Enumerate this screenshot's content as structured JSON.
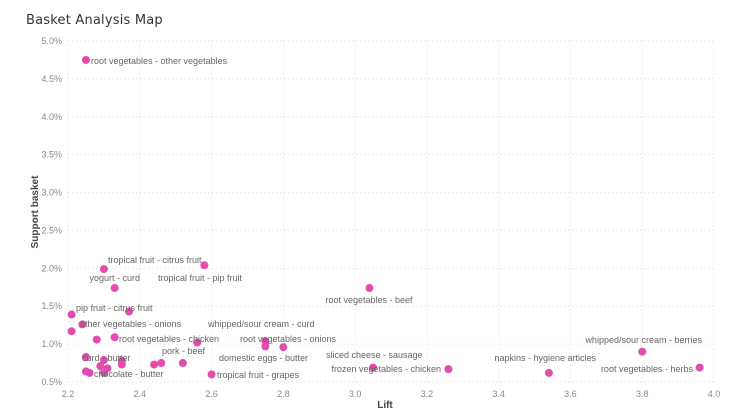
{
  "chart_data": {
    "type": "scatter",
    "title": "Basket Analysis Map",
    "xlabel": "Lift",
    "ylabel": "Support basket",
    "xlim": [
      2.2,
      4.0
    ],
    "ylim": [
      0.5,
      5.0
    ],
    "xticks": [
      "2.2",
      "2.4",
      "2.6",
      "2.8",
      "3.0",
      "3.2",
      "3.4",
      "3.6",
      "3.8",
      "4.0"
    ],
    "yticks": [
      "0.5%",
      "1.0%",
      "1.5%",
      "2.0%",
      "2.5%",
      "3.0%",
      "3.5%",
      "4.0%",
      "4.5%",
      "5.0%"
    ],
    "grid": true,
    "color": "#E44BAE",
    "points": [
      {
        "x": 2.25,
        "y": 4.75,
        "label": "root vegetables - other vegetables"
      },
      {
        "x": 2.3,
        "y": 1.99,
        "label": "tropical fruit - citrus fruit"
      },
      {
        "x": 2.58,
        "y": 2.04,
        "label": "tropical fruit - pip fruit"
      },
      {
        "x": 2.33,
        "y": 1.74,
        "label": "yogurt - curd"
      },
      {
        "x": 2.37,
        "y": 1.43,
        "label": "pip fruit - citrus fruit"
      },
      {
        "x": 2.21,
        "y": 1.39,
        "label": ""
      },
      {
        "x": 2.21,
        "y": 1.17,
        "label": ""
      },
      {
        "x": 2.24,
        "y": 1.26,
        "label": "other vegetables - onions"
      },
      {
        "x": 2.28,
        "y": 1.06,
        "label": ""
      },
      {
        "x": 2.33,
        "y": 1.09,
        "label": "root vegetables - chicken"
      },
      {
        "x": 2.56,
        "y": 1.02,
        "label": ""
      },
      {
        "x": 2.75,
        "y": 1.04,
        "label": "whipped/sour cream - curd"
      },
      {
        "x": 2.75,
        "y": 0.97,
        "label": "root vegetables - onions"
      },
      {
        "x": 2.8,
        "y": 0.96,
        "label": "domestic eggs - butter"
      },
      {
        "x": 2.25,
        "y": 0.83,
        "label": "curd - butter"
      },
      {
        "x": 2.3,
        "y": 0.79,
        "label": ""
      },
      {
        "x": 2.35,
        "y": 0.73,
        "label": ""
      },
      {
        "x": 2.35,
        "y": 0.78,
        "label": ""
      },
      {
        "x": 2.29,
        "y": 0.71,
        "label": ""
      },
      {
        "x": 2.31,
        "y": 0.68,
        "label": ""
      },
      {
        "x": 2.25,
        "y": 0.64,
        "label": "chocolate - butter"
      },
      {
        "x": 2.26,
        "y": 0.62,
        "label": ""
      },
      {
        "x": 2.3,
        "y": 0.62,
        "label": ""
      },
      {
        "x": 2.44,
        "y": 0.73,
        "label": ""
      },
      {
        "x": 2.46,
        "y": 0.75,
        "label": "pork - beef"
      },
      {
        "x": 2.52,
        "y": 0.75,
        "label": ""
      },
      {
        "x": 2.6,
        "y": 0.6,
        "label": "tropical fruit - grapes"
      },
      {
        "x": 3.04,
        "y": 1.74,
        "label": "root vegetables - beef"
      },
      {
        "x": 3.05,
        "y": 0.69,
        "label": "sliced cheese - sausage"
      },
      {
        "x": 3.26,
        "y": 0.67,
        "label": "frozen vegetables - chicken"
      },
      {
        "x": 3.54,
        "y": 0.62,
        "label": "napkins - hygiene articles"
      },
      {
        "x": 3.8,
        "y": 0.9,
        "label": "whipped/sour cream - berries"
      },
      {
        "x": 3.96,
        "y": 0.69,
        "label": "root vegetables - herbs"
      }
    ]
  }
}
